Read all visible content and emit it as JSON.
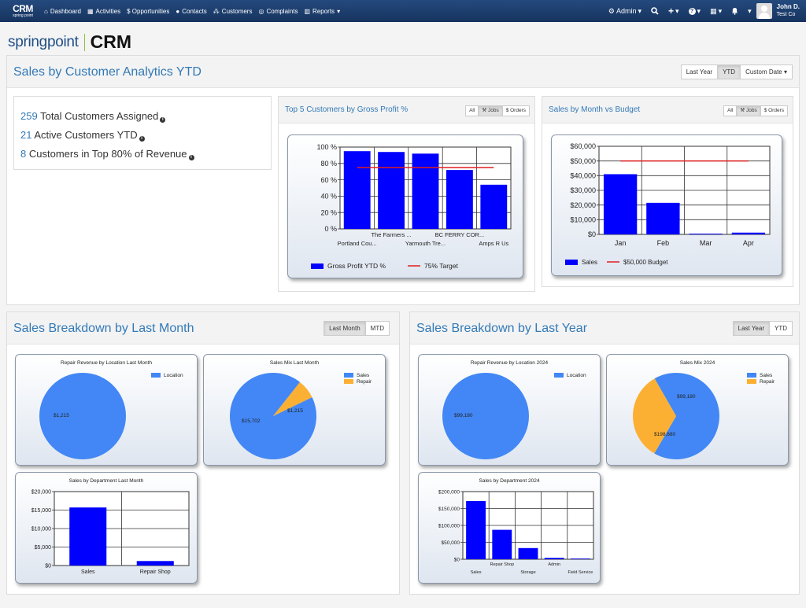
{
  "navbar": {
    "brand": {
      "crm": "CRM",
      "sub": "spring point"
    },
    "items": [
      {
        "label": "Dashboard",
        "icon": "home-icon",
        "glyph": "⌂"
      },
      {
        "label": "Activities",
        "icon": "calendar-icon",
        "glyph": "▦"
      },
      {
        "label": "$ Opportunities",
        "icon": "dollar-icon",
        "glyph": ""
      },
      {
        "label": "Contacts",
        "icon": "user-icon",
        "glyph": "●"
      },
      {
        "label": "Customers",
        "icon": "sitemap-icon",
        "glyph": "⁂"
      },
      {
        "label": "Complaints",
        "icon": "support-icon",
        "glyph": "◎"
      },
      {
        "label": "Reports",
        "icon": "bar-chart-icon",
        "glyph": "▥"
      }
    ],
    "admin_label": "Admin",
    "user": {
      "name": "John D.",
      "company": "Test Co"
    }
  },
  "logo": {
    "left": "springpoint",
    "right": "CRM"
  },
  "analytics": {
    "title": "Sales by Customer Analytics YTD",
    "range_buttons": [
      "Last Year",
      "YTD",
      "Custom Date"
    ],
    "active_range": "YTD",
    "stats": [
      {
        "num": "259",
        "text": "Total Customers Assigned"
      },
      {
        "num": "21",
        "text": "Active Customers YTD"
      },
      {
        "num": "8",
        "text": "Customers in Top 80% of Revenue"
      }
    ],
    "top5": {
      "title": "Top 5 Customers by Gross Profit %",
      "filters": [
        "All",
        "Jobs",
        "$ Orders"
      ],
      "active": "Jobs"
    },
    "monthly": {
      "title": "Sales by Month vs Budget",
      "filters": [
        "All",
        "Jobs",
        "$ Orders"
      ],
      "active": "Jobs"
    }
  },
  "last_month": {
    "title": "Sales Breakdown by Last Month",
    "buttons": [
      "Last Month",
      "MTD"
    ],
    "active": "Last Month"
  },
  "last_year": {
    "title": "Sales Breakdown by Last Year",
    "buttons": [
      "Last Year",
      "YTD"
    ],
    "active": "Last Year"
  },
  "colors": {
    "bar": "#0000ff",
    "target": "#e02020",
    "pie_blue": "#4287f5",
    "pie_orange": "#fbb034",
    "title_blue": "#337ab7"
  },
  "chart_data": [
    {
      "id": "top5",
      "type": "bar",
      "categories": [
        "Portland Cou...",
        "The Farmers ...",
        "Yarmouth Tre...",
        "BC FERRY COR...",
        "Amps R Us"
      ],
      "series": [
        {
          "name": "Gross Profit YTD %",
          "values": [
            95,
            94,
            92,
            72,
            54
          ]
        }
      ],
      "target": {
        "name": "75% Target",
        "value": 75
      },
      "yticks": [
        "0 %",
        "20 %",
        "40 %",
        "60 %",
        "80 %",
        "100 %"
      ],
      "ylim": [
        0,
        100
      ]
    },
    {
      "id": "monthly",
      "type": "bar",
      "categories": [
        "Jan",
        "Feb",
        "Mar",
        "Apr"
      ],
      "series": [
        {
          "name": "Sales",
          "values": [
            41000,
            21500,
            500,
            1200
          ]
        }
      ],
      "target": {
        "name": "$50,000 Budget",
        "value": 50000
      },
      "yticks": [
        "$0",
        "$10,000",
        "$20,000",
        "$30,000",
        "$40,000",
        "$50,000",
        "$60,000"
      ],
      "ylim": [
        0,
        60000
      ]
    },
    {
      "id": "lm_location",
      "type": "pie",
      "title": "Repair Revenue by Location Last Month",
      "slices": [
        {
          "name": "Location",
          "value": 1215,
          "label": "$1,215"
        }
      ]
    },
    {
      "id": "lm_mix",
      "type": "pie",
      "title": "Sales Mix Last Month",
      "slices": [
        {
          "name": "Sales",
          "value": 15702,
          "label": "$15,702"
        },
        {
          "name": "Repair",
          "value": 1215,
          "label": "$1,215"
        }
      ]
    },
    {
      "id": "lm_dept",
      "type": "bar",
      "title": "Sales by Department Last Month",
      "categories": [
        "Sales",
        "Repair Shop"
      ],
      "series": [
        {
          "name": "Sales",
          "values": [
            15702,
            1215
          ]
        }
      ],
      "yticks": [
        "$0",
        "$5,000",
        "$10,000",
        "$15,000",
        "$20,000"
      ],
      "ylim": [
        0,
        20000
      ]
    },
    {
      "id": "ly_location",
      "type": "pie",
      "title": "Repair Revenue by Location 2024",
      "slices": [
        {
          "name": "Location",
          "value": 99180,
          "label": "$99,180"
        }
      ]
    },
    {
      "id": "ly_mix",
      "type": "pie",
      "title": "Sales Mix 2024",
      "slices": [
        {
          "name": "Sales",
          "value": 198680,
          "label": "$198,680"
        },
        {
          "name": "Repair",
          "value": 99180,
          "label": "$99,180"
        }
      ]
    },
    {
      "id": "ly_dept",
      "type": "bar",
      "title": "Sales by Department 2024",
      "categories": [
        "Sales",
        "Repair Shop",
        "Storage",
        "Admin",
        "Field Service"
      ],
      "series": [
        {
          "name": "Sales",
          "values": [
            172000,
            87000,
            33000,
            4000,
            2000
          ]
        }
      ],
      "yticks": [
        "$0",
        "$50,000",
        "$100,000",
        "$150,000",
        "$200,000"
      ],
      "ylim": [
        0,
        200000
      ]
    }
  ]
}
